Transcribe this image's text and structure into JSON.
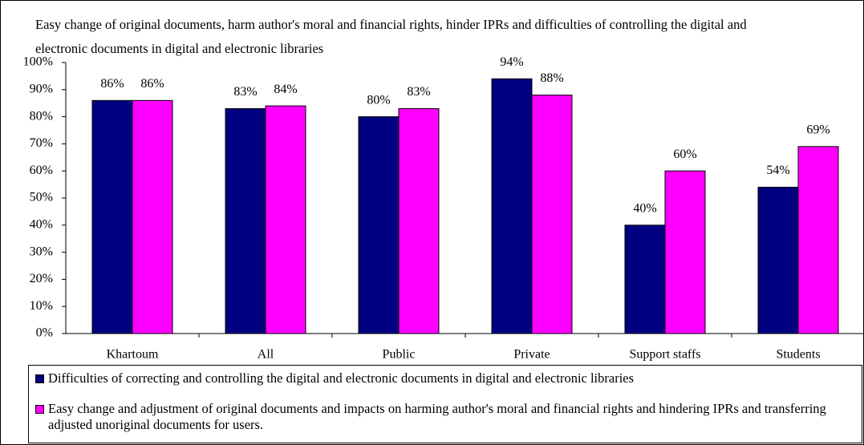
{
  "chart_data": {
    "type": "bar",
    "title": "Easy change of original documents, harm author's moral and financial rights, hinder IPRs and difficulties of controlling the digital and electronic documents in digital and electronic libraries",
    "categories": [
      "Khartoum",
      "All",
      "Public",
      "Private",
      "Support staffs",
      "Students"
    ],
    "series": [
      {
        "name": "Difficulties of correcting and controlling the digital and electronic documents in digital and electronic libraries",
        "color": "#000080",
        "values": [
          86,
          83,
          80,
          94,
          40,
          54
        ],
        "value_labels": [
          "86%",
          "83%",
          "80%",
          "94%",
          "40%",
          "54%"
        ]
      },
      {
        "name": "Easy change and adjustment of original documents and impacts on harming author's moral and financial rights and hindering IPRs and transferring adjusted unoriginal documents for users.",
        "color": "#ff00ff",
        "values": [
          86,
          84,
          83,
          88,
          60,
          69
        ],
        "value_labels": [
          "86%",
          "84%",
          "83%",
          "88%",
          "60%",
          "69%"
        ]
      }
    ],
    "ylim": [
      0,
      100
    ],
    "yticks": [
      {
        "value": 0,
        "label": "0%"
      },
      {
        "value": 10,
        "label": "10%"
      },
      {
        "value": 20,
        "label": "20%"
      },
      {
        "value": 30,
        "label": "30%"
      },
      {
        "value": 40,
        "label": "40%"
      },
      {
        "value": 50,
        "label": "50%"
      },
      {
        "value": 60,
        "label": "60%"
      },
      {
        "value": 70,
        "label": "70%"
      },
      {
        "value": 80,
        "label": "80%"
      },
      {
        "value": 90,
        "label": "90%"
      },
      {
        "value": 100,
        "label": "100%"
      }
    ],
    "grid": false,
    "legend": "bottom"
  }
}
